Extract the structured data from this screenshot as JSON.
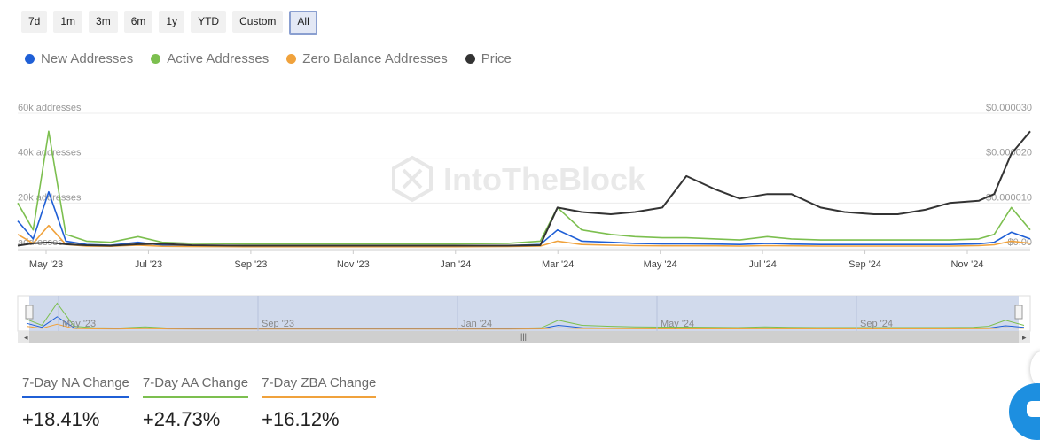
{
  "range_buttons": [
    "7d",
    "1m",
    "3m",
    "6m",
    "1y",
    "YTD",
    "Custom",
    "All"
  ],
  "active_range": "All",
  "legend": [
    {
      "label": "New Addresses",
      "color": "#1f5fd6"
    },
    {
      "label": "Active Addresses",
      "color": "#7cbf4f"
    },
    {
      "label": "Zero Balance Addresses",
      "color": "#f0a23c"
    },
    {
      "label": "Price",
      "color": "#333333"
    }
  ],
  "watermark": "IntoTheBlock",
  "chart_data": {
    "type": "line",
    "x_tick_labels": [
      "May '23",
      "Jul '23",
      "Sep '23",
      "Nov '23",
      "Jan '24",
      "Mar '24",
      "May '24",
      "Jul '24",
      "Sep '24",
      "Nov '24"
    ],
    "y_left_tick_labels": [
      "addresses",
      "20k addresses",
      "40k addresses",
      "60k addresses"
    ],
    "y_left_range": [
      0,
      60000
    ],
    "y_right_tick_labels": [
      "$0.00",
      "$0.000010",
      "$0.000020",
      "$0.000030"
    ],
    "y_right_range": [
      0,
      3e-05
    ],
    "grid": true,
    "x": [
      "2023-04-22",
      "2023-05-01",
      "2023-05-10",
      "2023-05-20",
      "2023-06-01",
      "2023-06-15",
      "2023-07-01",
      "2023-07-15",
      "2023-08-01",
      "2023-09-01",
      "2023-10-01",
      "2023-11-01",
      "2023-12-01",
      "2024-01-01",
      "2024-02-01",
      "2024-02-20",
      "2024-03-01",
      "2024-03-15",
      "2024-04-01",
      "2024-04-15",
      "2024-05-01",
      "2024-05-15",
      "2024-06-01",
      "2024-06-15",
      "2024-07-01",
      "2024-07-15",
      "2024-08-01",
      "2024-08-15",
      "2024-09-01",
      "2024-09-15",
      "2024-10-01",
      "2024-10-15",
      "2024-11-01",
      "2024-11-10",
      "2024-11-20",
      "2024-12-01"
    ],
    "series": [
      {
        "name": "Active Addresses",
        "axis": "left",
        "color": "#7cbf4f",
        "values": [
          20000,
          8000,
          52000,
          6000,
          3000,
          2500,
          5000,
          2500,
          2000,
          1800,
          1800,
          1800,
          1800,
          1800,
          2000,
          3000,
          18000,
          8000,
          6000,
          5000,
          4500,
          4500,
          4000,
          3500,
          5000,
          4000,
          3500,
          3500,
          3500,
          3500,
          3500,
          3500,
          4000,
          6000,
          18000,
          8000
        ]
      },
      {
        "name": "New Addresses",
        "axis": "left",
        "color": "#1f5fd6",
        "values": [
          12000,
          4000,
          25000,
          3000,
          1500,
          1200,
          2500,
          1200,
          1000,
          900,
          900,
          900,
          900,
          900,
          1000,
          1500,
          8000,
          3000,
          2500,
          2000,
          1800,
          1800,
          1700,
          1500,
          2000,
          1700,
          1500,
          1500,
          1500,
          1500,
          1500,
          1500,
          1800,
          2500,
          7000,
          4000
        ]
      },
      {
        "name": "Zero Balance Addresses",
        "axis": "left",
        "color": "#f0a23c",
        "values": [
          6000,
          2000,
          10000,
          1500,
          800,
          700,
          1200,
          700,
          600,
          500,
          500,
          500,
          500,
          500,
          600,
          800,
          3000,
          1500,
          1200,
          1000,
          900,
          900,
          900,
          800,
          1000,
          900,
          800,
          800,
          800,
          800,
          800,
          800,
          1000,
          1400,
          3000,
          2000
        ]
      },
      {
        "name": "Price",
        "axis": "right",
        "color": "#333333",
        "values": [
          5e-07,
          1e-06,
          1.2e-06,
          8e-07,
          6e-07,
          5e-07,
          8e-07,
          9e-07,
          6e-07,
          5e-07,
          5e-07,
          5e-07,
          5e-07,
          5e-07,
          5e-07,
          6e-07,
          9e-06,
          8e-06,
          7.5e-06,
          8e-06,
          9e-06,
          1.6e-05,
          1.3e-05,
          1.1e-05,
          1.2e-05,
          1.2e-05,
          9e-06,
          8e-06,
          7.5e-06,
          7.5e-06,
          8.5e-06,
          1e-05,
          1.05e-05,
          1.2e-05,
          2.1e-05,
          2.6e-05
        ]
      }
    ]
  },
  "navigator": {
    "labels": [
      "May '23",
      "Sep '23",
      "Jan '24",
      "May '24",
      "Sep '24"
    ]
  },
  "stats": [
    {
      "label": "7-Day NA Change",
      "value": "+18.41%",
      "color": "#1f5fd6"
    },
    {
      "label": "7-Day AA Change",
      "value": "+24.73%",
      "color": "#7cbf4f"
    },
    {
      "label": "7-Day ZBA Change",
      "value": "+16.12%",
      "color": "#f0a23c"
    }
  ]
}
